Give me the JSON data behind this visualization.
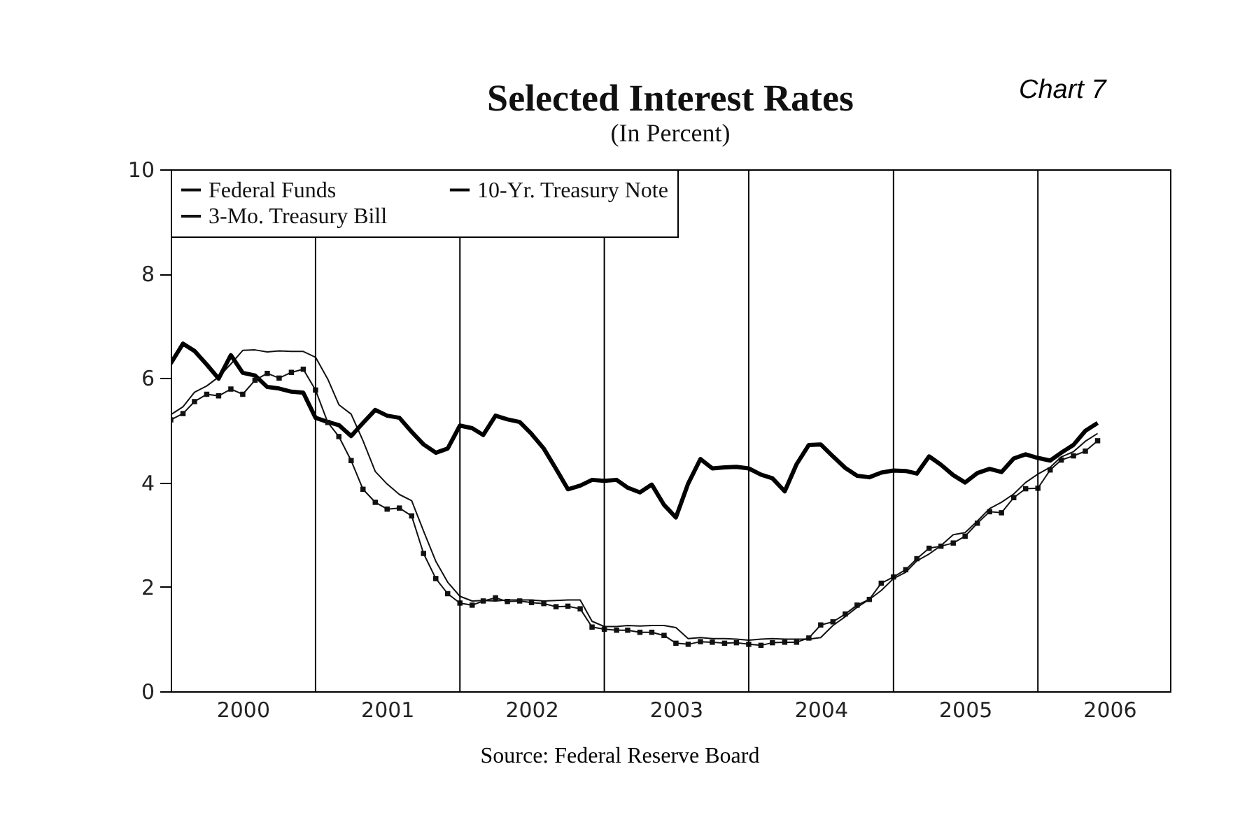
{
  "chart_data": {
    "type": "line",
    "title": "Selected Interest Rates",
    "subtitle": "(In Percent)",
    "annotations": [
      "Chart 7",
      "Source: Federal Reserve Board"
    ],
    "x": [
      "2000-01",
      "2000-02",
      "2000-03",
      "2000-04",
      "2000-05",
      "2000-06",
      "2000-07",
      "2000-08",
      "2000-09",
      "2000-10",
      "2000-11",
      "2000-12",
      "2001-01",
      "2001-02",
      "2001-03",
      "2001-04",
      "2001-05",
      "2001-06",
      "2001-07",
      "2001-08",
      "2001-09",
      "2001-10",
      "2001-11",
      "2001-12",
      "2002-01",
      "2002-02",
      "2002-03",
      "2002-04",
      "2002-05",
      "2002-06",
      "2002-07",
      "2002-08",
      "2002-09",
      "2002-10",
      "2002-11",
      "2002-12",
      "2003-01",
      "2003-02",
      "2003-03",
      "2003-04",
      "2003-05",
      "2003-06",
      "2003-07",
      "2003-08",
      "2003-09",
      "2003-10",
      "2003-11",
      "2003-12",
      "2004-01",
      "2004-02",
      "2004-03",
      "2004-04",
      "2004-05",
      "2004-06",
      "2004-07",
      "2004-08",
      "2004-09",
      "2004-10",
      "2004-11",
      "2004-12",
      "2005-01",
      "2005-02",
      "2005-03",
      "2005-04",
      "2005-05",
      "2005-06",
      "2005-07",
      "2005-08",
      "2005-09",
      "2005-10",
      "2005-11",
      "2005-12",
      "2006-01",
      "2006-02",
      "2006-03",
      "2006-04",
      "2006-05",
      "2006-06"
    ],
    "series": [
      {
        "name": "Federal Funds",
        "color": "#111111",
        "marker": "none",
        "values": [
          5.3,
          5.45,
          5.73,
          5.85,
          6.02,
          6.27,
          6.53,
          6.54,
          6.5,
          6.52,
          6.51,
          6.51,
          6.4,
          5.98,
          5.49,
          5.31,
          4.8,
          4.21,
          3.97,
          3.77,
          3.65,
          3.07,
          2.49,
          2.09,
          1.82,
          1.73,
          1.74,
          1.73,
          1.75,
          1.75,
          1.75,
          1.73,
          1.74,
          1.75,
          1.75,
          1.34,
          1.24,
          1.24,
          1.26,
          1.25,
          1.26,
          1.26,
          1.22,
          1.01,
          1.03,
          1.01,
          1.01,
          1.0,
          0.98,
          1.0,
          1.01,
          1.0,
          1.0,
          1.0,
          1.03,
          1.26,
          1.43,
          1.61,
          1.76,
          1.93,
          2.16,
          2.28,
          2.5,
          2.63,
          2.79,
          3.0,
          3.04,
          3.26,
          3.5,
          3.62,
          3.78,
          4.0,
          4.16,
          4.29,
          4.49,
          4.59,
          4.79,
          4.94
        ]
      },
      {
        "name": "10-Yr. Treasury Note",
        "color": "#000000",
        "marker": "none",
        "values": [
          6.28,
          6.66,
          6.52,
          6.26,
          5.99,
          6.44,
          6.1,
          6.05,
          5.83,
          5.8,
          5.74,
          5.72,
          5.24,
          5.16,
          5.1,
          4.89,
          5.14,
          5.39,
          5.28,
          5.24,
          4.97,
          4.73,
          4.57,
          4.65,
          5.09,
          5.04,
          4.91,
          5.28,
          5.21,
          5.16,
          4.93,
          4.65,
          4.26,
          3.87,
          3.94,
          4.05,
          4.03,
          4.05,
          3.9,
          3.81,
          3.96,
          3.57,
          3.33,
          3.98,
          4.45,
          4.27,
          4.29,
          4.3,
          4.27,
          4.15,
          4.08,
          3.83,
          4.35,
          4.72,
          4.73,
          4.5,
          4.28,
          4.13,
          4.1,
          4.19,
          4.23,
          4.22,
          4.17,
          4.5,
          4.34,
          4.14,
          4.0,
          4.18,
          4.26,
          4.2,
          4.46,
          4.54,
          4.47,
          4.42,
          4.57,
          4.72,
          4.99,
          5.14
        ]
      },
      {
        "name": "3-Mo. Treasury Bill",
        "color": "#111111",
        "marker": "square",
        "values": [
          5.2,
          5.32,
          5.55,
          5.69,
          5.66,
          5.79,
          5.69,
          5.96,
          6.09,
          6.0,
          6.11,
          6.17,
          5.77,
          5.15,
          4.88,
          4.42,
          3.87,
          3.62,
          3.49,
          3.51,
          3.36,
          2.64,
          2.16,
          1.87,
          1.69,
          1.65,
          1.73,
          1.79,
          1.72,
          1.73,
          1.7,
          1.68,
          1.62,
          1.63,
          1.58,
          1.23,
          1.19,
          1.17,
          1.17,
          1.13,
          1.13,
          1.07,
          0.92,
          0.9,
          0.95,
          0.94,
          0.92,
          0.93,
          0.9,
          0.88,
          0.93,
          0.94,
          0.94,
          1.02,
          1.27,
          1.33,
          1.48,
          1.65,
          1.76,
          2.07,
          2.19,
          2.33,
          2.54,
          2.74,
          2.78,
          2.84,
          2.97,
          3.22,
          3.44,
          3.42,
          3.71,
          3.88,
          3.89,
          4.24,
          4.43,
          4.51,
          4.6,
          4.8
        ]
      }
    ],
    "xlim": [
      "2000-01",
      "2006-12"
    ],
    "xticks": [
      {
        "value": "2000-07",
        "label": "2000"
      },
      {
        "value": "2001-07",
        "label": "2001"
      },
      {
        "value": "2002-07",
        "label": "2002"
      },
      {
        "value": "2003-07",
        "label": "2003"
      },
      {
        "value": "2004-07",
        "label": "2004"
      },
      {
        "value": "2005-07",
        "label": "2005"
      },
      {
        "value": "2006-07",
        "label": "2006"
      }
    ],
    "ylim": [
      0,
      10
    ],
    "yticks": [
      0,
      2,
      4,
      6,
      8,
      10
    ],
    "ref_lines": [
      {
        "axis": "x",
        "value": "2001-01",
        "color": "#000000"
      },
      {
        "axis": "x",
        "value": "2002-01",
        "color": "#000000"
      },
      {
        "axis": "x",
        "value": "2003-01",
        "color": "#000000"
      },
      {
        "axis": "x",
        "value": "2004-01",
        "color": "#000000"
      },
      {
        "axis": "x",
        "value": "2005-01",
        "color": "#000000"
      },
      {
        "axis": "x",
        "value": "2006-01",
        "color": "#000000"
      }
    ],
    "grid": false,
    "legend": "top left",
    "line_style": "solid"
  }
}
